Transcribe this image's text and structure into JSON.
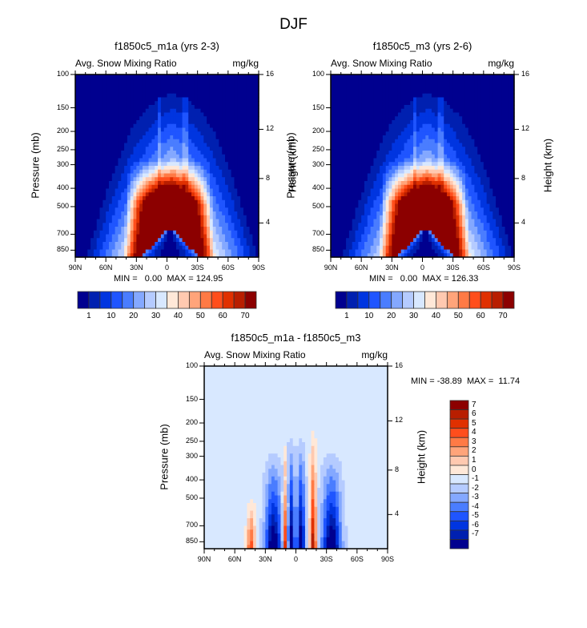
{
  "figure_title": "DJF",
  "chart_data": [
    {
      "type": "heatmap",
      "title": "f1850c5_m1a (yrs 2-3)",
      "left_string": "Avg. Snow Mixing Ratio",
      "right_string": "mg/kg",
      "xlabel": "",
      "ylabel": "Pressure (mb)",
      "ylabel_right": "Height (km)",
      "x_ticks": [
        "90N",
        "60N",
        "30N",
        "0",
        "30S",
        "60S",
        "90S"
      ],
      "y_ticks": [
        "100",
        "150",
        "200",
        "250",
        "300",
        "400",
        "500",
        "700",
        "850"
      ],
      "y_ticks_right": [
        "16",
        "12",
        "8",
        "4"
      ],
      "ylim": [
        850,
        100
      ],
      "xlim": [
        "90N",
        "90S"
      ],
      "min": "0.00",
      "max": "124.95",
      "minmax_text": "MIN =   0.00  MAX = 124.95",
      "description": "Snow mixing ratio max (>70 mg/kg) at 300-850 mb between 45N and 50S, with low values near the surface at the equator",
      "colorbar": {
        "orientation": "horizontal",
        "labels": [
          "1",
          "10",
          "20",
          "30",
          "40",
          "50",
          "60",
          "70"
        ],
        "colors": [
          "#00008f",
          "#0020b0",
          "#0035e0",
          "#1f55ff",
          "#4a7dff",
          "#84a8ff",
          "#b5cbff",
          "#d8e8ff",
          "#ffe8d8",
          "#ffc9b0",
          "#ffa47a",
          "#ff7a45",
          "#ff4e1c",
          "#e03000",
          "#b81e00",
          "#8c0000"
        ]
      }
    },
    {
      "type": "heatmap",
      "title": "f1850c5_m3 (yrs 2-6)",
      "left_string": "Avg. Snow Mixing Ratio",
      "right_string": "mg/kg",
      "xlabel": "",
      "ylabel": "Pressure (mb)",
      "ylabel_right": "Height (km)",
      "x_ticks": [
        "90N",
        "60N",
        "30N",
        "0",
        "30S",
        "60S",
        "90S"
      ],
      "y_ticks": [
        "100",
        "150",
        "200",
        "250",
        "300",
        "400",
        "500",
        "700",
        "850"
      ],
      "y_ticks_right": [
        "16",
        "12",
        "8",
        "4"
      ],
      "ylim": [
        850,
        100
      ],
      "xlim": [
        "90N",
        "90S"
      ],
      "min": "0.00",
      "max": "126.33",
      "minmax_text": "MIN =   0.00  MAX = 126.33",
      "colorbar": {
        "orientation": "horizontal",
        "labels": [
          "1",
          "10",
          "20",
          "30",
          "40",
          "50",
          "60",
          "70"
        ],
        "colors": [
          "#00008f",
          "#0020b0",
          "#0035e0",
          "#1f55ff",
          "#4a7dff",
          "#84a8ff",
          "#b5cbff",
          "#d8e8ff",
          "#ffe8d8",
          "#ffc9b0",
          "#ffa47a",
          "#ff7a45",
          "#ff4e1c",
          "#e03000",
          "#b81e00",
          "#8c0000"
        ]
      }
    },
    {
      "type": "heatmap",
      "title": "f1850c5_m1a - f1850c5_m3",
      "left_string": "Avg. Snow Mixing Ratio",
      "right_string": "mg/kg",
      "xlabel": "",
      "ylabel": "Pressure (mb)",
      "ylabel_right": "Height (km)",
      "x_ticks": [
        "90N",
        "60N",
        "30N",
        "0",
        "30S",
        "60S",
        "90S"
      ],
      "y_ticks": [
        "100",
        "150",
        "200",
        "250",
        "300",
        "400",
        "500",
        "700",
        "850"
      ],
      "y_ticks_right": [
        "16",
        "12",
        "8",
        "4"
      ],
      "ylim": [
        850,
        100
      ],
      "xlim": [
        "90N",
        "90S"
      ],
      "min": "-38.89",
      "max": "11.74",
      "minmax_text": "MIN = -38.89  MAX =  11.74",
      "colorbar": {
        "orientation": "vertical",
        "labels": [
          "7",
          "6",
          "5",
          "4",
          "3",
          "2",
          "1",
          "0",
          "-1",
          "-2",
          "-3",
          "-4",
          "-5",
          "-6",
          "-7"
        ],
        "colors": [
          "#8c0000",
          "#b81e00",
          "#e03000",
          "#ff4e1c",
          "#ff7a45",
          "#ffa47a",
          "#ffc9b0",
          "#ffe8d8",
          "#d8e8ff",
          "#b5cbff",
          "#84a8ff",
          "#4a7dff",
          "#1f55ff",
          "#0035e0",
          "#0020b0",
          "#00008f"
        ]
      }
    }
  ]
}
